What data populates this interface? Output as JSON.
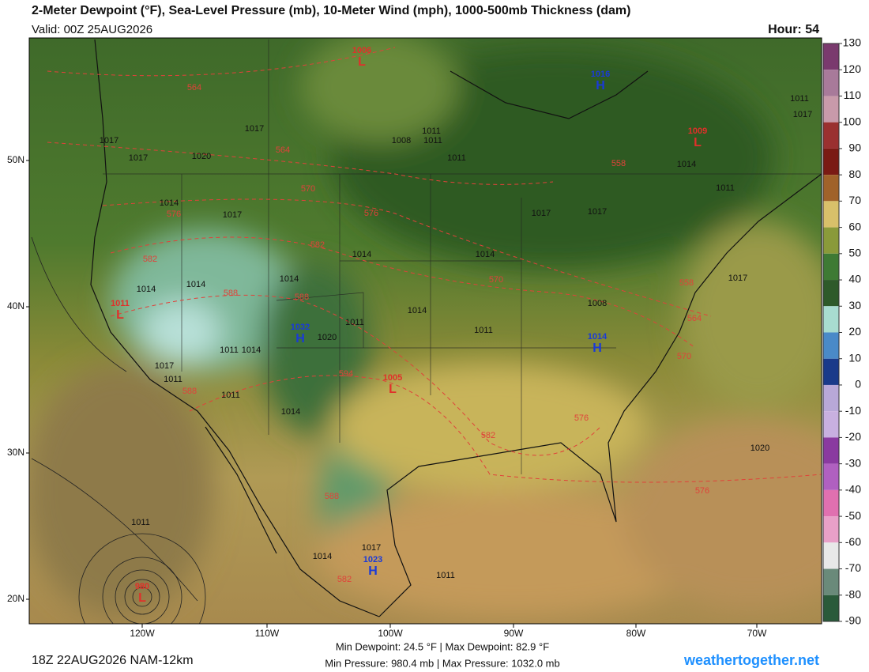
{
  "header": {
    "title": "2-Meter Dewpoint (°F), Sea-Level Pressure (mb), 10-Meter Wind (mph), 1000-500mb Thickness (dam)",
    "valid": "Valid: 00Z 25AUG2026",
    "hour": "Hour: 54"
  },
  "colorbar": {
    "ticks": [
      130,
      120,
      110,
      100,
      90,
      80,
      70,
      60,
      50,
      40,
      30,
      20,
      10,
      0,
      -10,
      -20,
      -30,
      -40,
      -50,
      -60,
      -70,
      -80,
      -90
    ]
  },
  "latitudes": [
    "50N",
    "40N",
    "30N",
    "20N"
  ],
  "longitudes": [
    "120W",
    "110W",
    "100W",
    "90W",
    "80W",
    "70W"
  ],
  "centers": [
    {
      "letter": "L",
      "value": "1006"
    },
    {
      "letter": "H",
      "value": "1016"
    },
    {
      "letter": "L",
      "value": "1009"
    },
    {
      "letter": "L",
      "value": "1011"
    },
    {
      "letter": "H",
      "value": "1032"
    },
    {
      "letter": "L",
      "value": "1005"
    },
    {
      "letter": "H",
      "value": "1014"
    },
    {
      "letter": "H",
      "value": "1023"
    },
    {
      "letter": "L",
      "value": "980"
    }
  ],
  "isobar_labels": [
    "1017",
    "1017",
    "1020",
    "1017",
    "1014",
    "1017",
    "1014",
    "1014",
    "1014",
    "1014",
    "1011",
    "1017",
    "1011",
    "1011",
    "1008",
    "1011",
    "1014",
    "1011",
    "1017",
    "1017",
    "1014",
    "1017",
    "1008",
    "1011",
    "1011",
    "1014",
    "1011",
    "1020",
    "1011",
    "1011",
    "1014",
    "1017",
    "1014",
    "1020",
    "1017",
    "1014",
    "1011",
    "1011"
  ],
  "thickness_labels": [
    "564",
    "564",
    "570",
    "576",
    "576",
    "582",
    "582",
    "588",
    "588",
    "594",
    "570",
    "558",
    "558",
    "564",
    "570",
    "576",
    "582",
    "588",
    "582",
    "576",
    "588"
  ],
  "footer": {
    "run": "18Z 22AUG2026 NAM-12km",
    "dewpoint": "Min Dewpoint:  24.5 °F | Max Dewpoint:  82.9 °F",
    "pressure": "Min Pressure: 980.4 mb | Max Pressure: 1032.0 mb",
    "site": "weathertogether.net"
  }
}
